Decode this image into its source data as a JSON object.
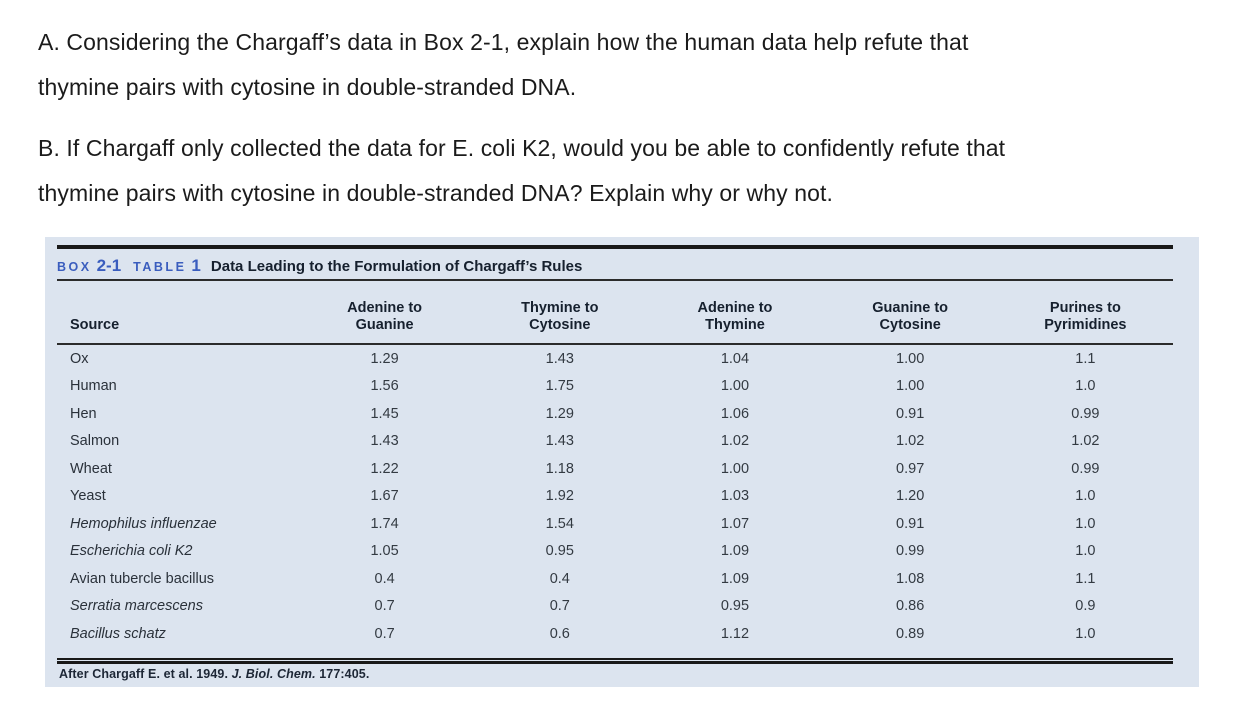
{
  "questions": {
    "a": {
      "lines": [
        "A. Considering the Chargaff’s data in Box 2-1, explain how the human data help refute that",
        "thymine pairs with cytosine in double-stranded DNA."
      ]
    },
    "b": {
      "lines": [
        "B. If Chargaff only collected the data for E. coli K2, would you be able to confidently refute that",
        "thymine pairs with cytosine in double-stranded DNA? Explain why or why not."
      ]
    }
  },
  "box_table": {
    "box_label": "BOX",
    "box_number": "2-1",
    "table_label": "TABLE",
    "table_number": "1",
    "title": "Data Leading to the Formulation of Chargaff’s Rules",
    "accent_color": "#3a5dbe",
    "panel_background": "#dce4ef",
    "columns": [
      {
        "line1": "",
        "line2": "Source"
      },
      {
        "line1": "Adenine to",
        "line2": "Guanine"
      },
      {
        "line1": "Thymine to",
        "line2": "Cytosine"
      },
      {
        "line1": "Adenine to",
        "line2": "Thymine"
      },
      {
        "line1": "Guanine to",
        "line2": "Cytosine"
      },
      {
        "line1": "Purines to",
        "line2": "Pyrimidines"
      }
    ],
    "rows": [
      {
        "source": "Ox",
        "italic": false,
        "values": [
          "1.29",
          "1.43",
          "1.04",
          "1.00",
          "1.1"
        ]
      },
      {
        "source": "Human",
        "italic": false,
        "values": [
          "1.56",
          "1.75",
          "1.00",
          "1.00",
          "1.0"
        ]
      },
      {
        "source": "Hen",
        "italic": false,
        "values": [
          "1.45",
          "1.29",
          "1.06",
          "0.91",
          "0.99"
        ]
      },
      {
        "source": "Salmon",
        "italic": false,
        "values": [
          "1.43",
          "1.43",
          "1.02",
          "1.02",
          "1.02"
        ]
      },
      {
        "source": "Wheat",
        "italic": false,
        "values": [
          "1.22",
          "1.18",
          "1.00",
          "0.97",
          "0.99"
        ]
      },
      {
        "source": "Yeast",
        "italic": false,
        "values": [
          "1.67",
          "1.92",
          "1.03",
          "1.20",
          "1.0"
        ]
      },
      {
        "source": "Hemophilus influenzae",
        "italic": true,
        "values": [
          "1.74",
          "1.54",
          "1.07",
          "0.91",
          "1.0"
        ]
      },
      {
        "source": "Escherichia coli K2",
        "italic": true,
        "values": [
          "1.05",
          "0.95",
          "1.09",
          "0.99",
          "1.0"
        ]
      },
      {
        "source": "Avian tubercle bacillus",
        "italic": false,
        "values": [
          "0.4",
          "0.4",
          "1.09",
          "1.08",
          "1.1"
        ]
      },
      {
        "source": "Serratia marcescens",
        "italic": true,
        "values": [
          "0.7",
          "0.7",
          "0.95",
          "0.86",
          "0.9"
        ]
      },
      {
        "source": "Bacillus schatz",
        "italic": true,
        "values": [
          "0.7",
          "0.6",
          "1.12",
          "0.89",
          "1.0"
        ]
      }
    ],
    "footnote": {
      "prefix": "After Chargaff E. et al. 1949.",
      "citation": "J. Biol. Chem.",
      "suffix": "177:405."
    }
  }
}
